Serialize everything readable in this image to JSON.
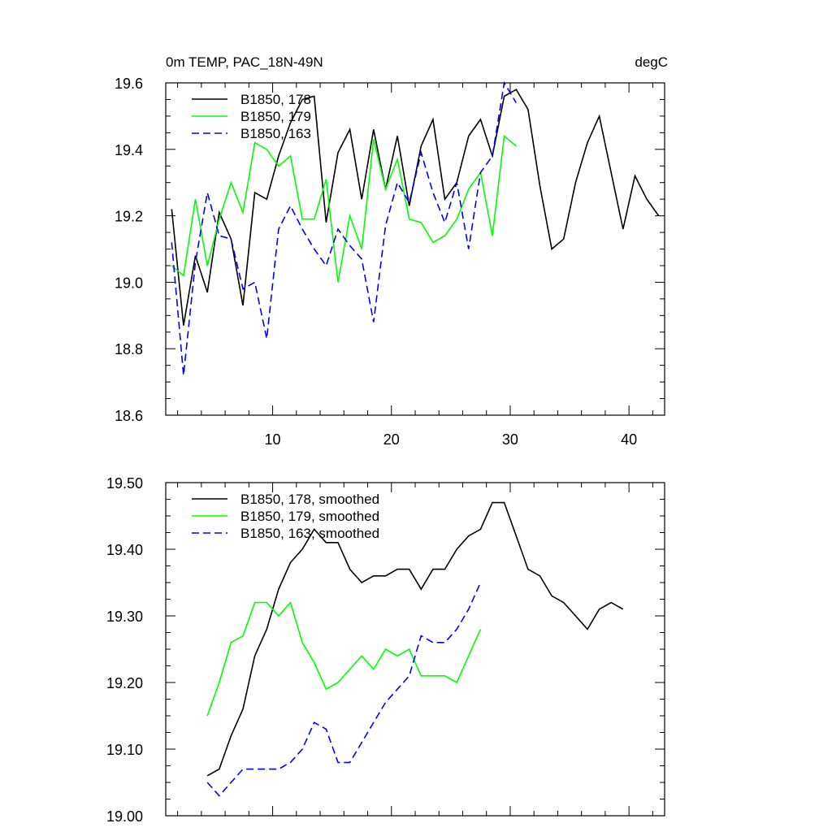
{
  "chart_data": [
    {
      "type": "line",
      "title": "0m TEMP, PAC_18N-49N",
      "units": "degC",
      "xlim": [
        1,
        43
      ],
      "ylim": [
        18.6,
        19.6
      ],
      "x_ticks": [
        10,
        20,
        30,
        40
      ],
      "x_tick_labels": [
        "10",
        "20",
        "30",
        "40"
      ],
      "y_ticks": [
        18.6,
        18.8,
        19.0,
        19.2,
        19.4,
        19.6
      ],
      "y_tick_labels": [
        "18.6",
        "18.8",
        "19.0",
        "19.2",
        "19.4",
        "19.6"
      ],
      "grid": false,
      "legend_position": "top-left",
      "series": [
        {
          "name": "B1850, 178",
          "color": "#000000",
          "dash": "solid",
          "x": [
            1.5,
            2.5,
            3.5,
            4.5,
            5.5,
            6.5,
            7.5,
            8.5,
            9.5,
            10.5,
            11.5,
            12.5,
            13.5,
            14.5,
            15.5,
            16.5,
            17.5,
            18.5,
            19.5,
            20.5,
            21.5,
            22.5,
            23.5,
            24.5,
            25.5,
            26.5,
            27.5,
            28.5,
            29.5,
            30.5,
            31.5,
            32.5,
            33.5,
            34.5,
            35.5,
            36.5,
            37.5,
            38.5,
            39.5,
            40.5,
            41.5,
            42.5
          ],
          "y": [
            19.22,
            18.87,
            19.08,
            18.97,
            19.21,
            19.13,
            18.93,
            19.27,
            19.25,
            19.38,
            19.48,
            19.55,
            19.56,
            19.18,
            19.39,
            19.46,
            19.25,
            19.46,
            19.28,
            19.44,
            19.23,
            19.41,
            19.49,
            19.25,
            19.3,
            19.44,
            19.49,
            19.38,
            19.56,
            19.58,
            19.52,
            19.29,
            19.1,
            19.13,
            19.3,
            19.42,
            19.5,
            19.33,
            19.16,
            19.32,
            19.25,
            19.2
          ]
        },
        {
          "name": "B1850, 179",
          "color": "#00ff00",
          "dash": "solid",
          "x": [
            1.5,
            2.5,
            3.5,
            4.5,
            5.5,
            6.5,
            7.5,
            8.5,
            9.5,
            10.5,
            11.5,
            12.5,
            13.5,
            14.5,
            15.5,
            16.5,
            17.5,
            18.5,
            19.5,
            20.5,
            21.5,
            22.5,
            23.5,
            24.5,
            25.5,
            26.5,
            27.5,
            28.5,
            29.5,
            30.5
          ],
          "y": [
            19.05,
            19.02,
            19.25,
            19.05,
            19.19,
            19.3,
            19.21,
            19.42,
            19.4,
            19.35,
            19.38,
            19.19,
            19.19,
            19.31,
            19.0,
            19.2,
            19.1,
            19.43,
            19.28,
            19.37,
            19.19,
            19.18,
            19.12,
            19.14,
            19.19,
            19.28,
            19.33,
            19.14,
            19.44,
            19.41
          ]
        },
        {
          "name": "B1850, 163",
          "color": "#0000ff",
          "dash": "dashed",
          "x": [
            1.5,
            2.5,
            3.5,
            4.5,
            5.5,
            6.5,
            7.5,
            8.5,
            9.5,
            10.5,
            11.5,
            12.5,
            13.5,
            14.5,
            15.5,
            16.5,
            17.5,
            18.5,
            19.5,
            20.5,
            21.5,
            22.5,
            23.5,
            24.5,
            25.5,
            26.5,
            27.5,
            28.5,
            29.5,
            30.5
          ],
          "y": [
            19.12,
            18.72,
            19.06,
            19.27,
            19.14,
            19.13,
            18.98,
            19.0,
            18.83,
            19.16,
            19.23,
            19.16,
            19.1,
            19.05,
            19.16,
            19.11,
            19.07,
            18.88,
            19.17,
            19.3,
            19.24,
            19.39,
            19.27,
            19.18,
            19.3,
            19.1,
            19.33,
            19.38,
            19.6,
            19.54
          ]
        }
      ]
    },
    {
      "type": "line",
      "xlim": [
        1,
        43
      ],
      "ylim": [
        19.0,
        19.5
      ],
      "x_ticks": [
        10,
        20,
        30,
        40
      ],
      "y_ticks": [
        19.0,
        19.1,
        19.2,
        19.3,
        19.4,
        19.5
      ],
      "y_tick_labels": [
        "19.00",
        "19.10",
        "19.20",
        "19.30",
        "19.40",
        "19.50"
      ],
      "grid": false,
      "legend_position": "top-left",
      "series": [
        {
          "name": "B1850, 178, smoothed",
          "color": "#000000",
          "dash": "solid",
          "x": [
            4.5,
            5.5,
            6.5,
            7.5,
            8.5,
            9.5,
            10.5,
            11.5,
            12.5,
            13.5,
            14.5,
            15.5,
            16.5,
            17.5,
            18.5,
            19.5,
            20.5,
            21.5,
            22.5,
            23.5,
            24.5,
            25.5,
            26.5,
            27.5,
            28.5,
            29.5,
            30.5,
            31.5,
            32.5,
            33.5,
            34.5,
            35.5,
            36.5,
            37.5,
            38.5,
            39.5
          ],
          "y": [
            19.06,
            19.07,
            19.12,
            19.16,
            19.24,
            19.28,
            19.34,
            19.38,
            19.4,
            19.43,
            19.41,
            19.41,
            19.37,
            19.35,
            19.36,
            19.36,
            19.37,
            19.37,
            19.34,
            19.37,
            19.37,
            19.4,
            19.42,
            19.43,
            19.47,
            19.47,
            19.42,
            19.37,
            19.36,
            19.33,
            19.32,
            19.3,
            19.28,
            19.31,
            19.32,
            19.31
          ]
        },
        {
          "name": "B1850, 179, smoothed",
          "color": "#00ff00",
          "dash": "solid",
          "x": [
            4.5,
            5.5,
            6.5,
            7.5,
            8.5,
            9.5,
            10.5,
            11.5,
            12.5,
            13.5,
            14.5,
            15.5,
            16.5,
            17.5,
            18.5,
            19.5,
            20.5,
            21.5,
            22.5,
            23.5,
            24.5,
            25.5,
            26.5,
            27.5
          ],
          "y": [
            19.15,
            19.2,
            19.26,
            19.27,
            19.32,
            19.32,
            19.3,
            19.32,
            19.26,
            19.23,
            19.19,
            19.2,
            19.22,
            19.24,
            19.22,
            19.25,
            19.24,
            19.25,
            19.21,
            19.21,
            19.21,
            19.2,
            19.24,
            19.28
          ]
        },
        {
          "name": "B1850, 163, smoothed",
          "color": "#0000ff",
          "dash": "dashed",
          "x": [
            4.5,
            5.5,
            6.5,
            7.5,
            8.5,
            9.5,
            10.5,
            11.5,
            12.5,
            13.5,
            14.5,
            15.5,
            16.5,
            17.5,
            18.5,
            19.5,
            20.5,
            21.5,
            22.5,
            23.5,
            24.5,
            25.5,
            26.5,
            27.5
          ],
          "y": [
            19.05,
            19.03,
            19.05,
            19.07,
            19.07,
            19.07,
            19.07,
            19.08,
            19.1,
            19.14,
            19.13,
            19.08,
            19.08,
            19.11,
            19.14,
            19.17,
            19.19,
            19.21,
            19.27,
            19.26,
            19.26,
            19.28,
            19.31,
            19.35
          ]
        }
      ]
    }
  ]
}
